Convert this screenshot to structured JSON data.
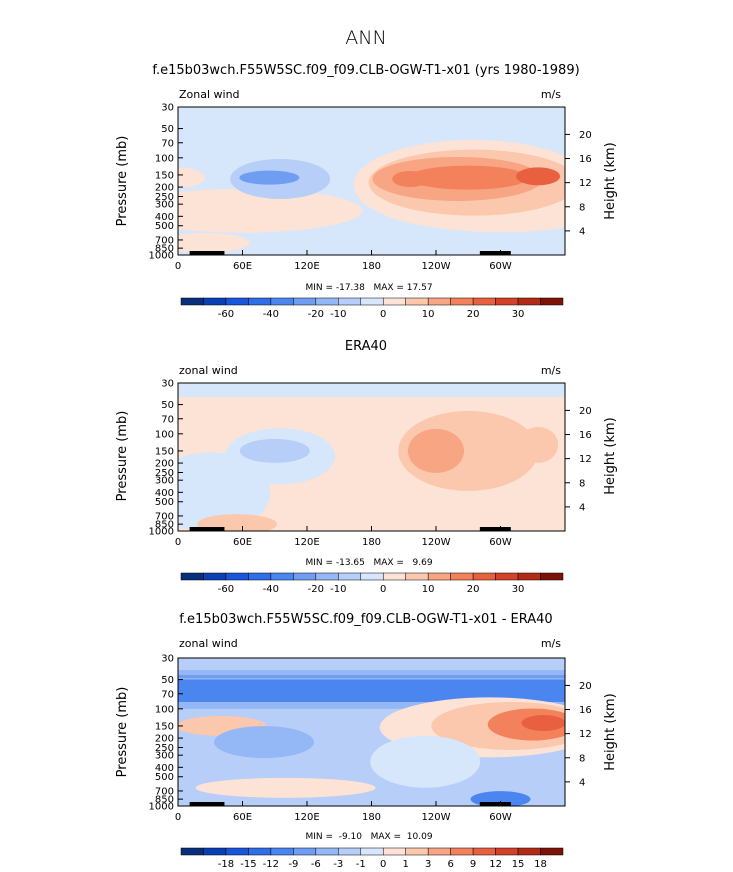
{
  "page_title": "ANN",
  "colors": {
    "frame": "#000000",
    "neg": [
      "#08307a",
      "#0b3fb5",
      "#1a56dc",
      "#2f6ee8",
      "#4a85f0",
      "#6f9df2",
      "#94b7f5",
      "#b7cef8",
      "#d6e6fb"
    ],
    "pos": [
      "#fde3d5",
      "#fbc7ad",
      "#f7a583",
      "#f2815c",
      "#e8603f",
      "#d24128",
      "#b32a16",
      "#7d1208"
    ],
    "land": "#000000"
  },
  "chart_data": [
    {
      "id": "model",
      "type": "heatmap",
      "title": "f.e15b03wch.F55W5SC.f09_f09.CLB-OGW-T1-x01 (yrs 1980-1989)",
      "label_left": "Zonal wind",
      "units": "m/s",
      "ylabel": "Pressure (mb)",
      "ylabel_right": "Height (km)",
      "xticks": [
        "0",
        "60E",
        "120E",
        "180",
        "120W",
        "60W"
      ],
      "yticks": [
        "30",
        "50",
        "70",
        "100",
        "150",
        "200",
        "250",
        "300",
        "400",
        "500",
        "700",
        "850",
        "1000"
      ],
      "height_ticks": [
        "20",
        "16",
        "12",
        "8",
        "4"
      ],
      "min": -17.38,
      "max": 17.57,
      "stats": "MIN = -17.38   MAX = 17.57",
      "colorbar_labels": [
        "-60",
        "-40",
        "-20",
        "-10",
        "0",
        "10",
        "20",
        "30"
      ],
      "levels": [
        -70,
        -60,
        -50,
        -40,
        -30,
        -20,
        -15,
        -10,
        -5,
        0,
        5,
        10,
        15,
        20,
        25,
        30,
        40
      ]
    },
    {
      "id": "obs",
      "type": "heatmap",
      "title": "ERA40",
      "label_left": "zonal wind",
      "units": "m/s",
      "ylabel": "Pressure (mb)",
      "ylabel_right": "Height (km)",
      "xticks": [
        "0",
        "60E",
        "120E",
        "180",
        "120W",
        "60W"
      ],
      "yticks": [
        "30",
        "50",
        "70",
        "100",
        "150",
        "200",
        "250",
        "300",
        "400",
        "500",
        "700",
        "850",
        "1000"
      ],
      "height_ticks": [
        "20",
        "16",
        "12",
        "8",
        "4"
      ],
      "min": -13.65,
      "max": 9.69,
      "stats": "MIN = -13.65   MAX =   9.69",
      "colorbar_labels": [
        "-60",
        "-40",
        "-20",
        "-10",
        "0",
        "10",
        "20",
        "30"
      ],
      "levels": [
        -70,
        -60,
        -50,
        -40,
        -30,
        -20,
        -15,
        -10,
        -5,
        0,
        5,
        10,
        15,
        20,
        25,
        30,
        40
      ]
    },
    {
      "id": "diff",
      "type": "heatmap",
      "title": "f.e15b03wch.F55W5SC.f09_f09.CLB-OGW-T1-x01 - ERA40",
      "label_left": "zonal wind",
      "units": "m/s",
      "ylabel": "Pressure (mb)",
      "ylabel_right": "Height (km)",
      "xticks": [
        "0",
        "60E",
        "120E",
        "180",
        "120W",
        "60W"
      ],
      "yticks": [
        "30",
        "50",
        "70",
        "100",
        "150",
        "200",
        "250",
        "300",
        "400",
        "500",
        "700",
        "850",
        "1000"
      ],
      "height_ticks": [
        "20",
        "16",
        "12",
        "8",
        "4"
      ],
      "min": -9.1,
      "max": 10.09,
      "stats": "MIN =  -9.10   MAX =  10.09",
      "colorbar_labels": [
        "-18",
        "-15",
        "-12",
        "-9",
        "-6",
        "-3",
        "-1",
        "0",
        "1",
        "3",
        "6",
        "9",
        "12",
        "15",
        "18"
      ],
      "levels": [
        -21,
        -18,
        -15,
        -12,
        -9,
        -6,
        -3,
        -1,
        0,
        1,
        3,
        6,
        9,
        12,
        15,
        18,
        21
      ]
    }
  ]
}
